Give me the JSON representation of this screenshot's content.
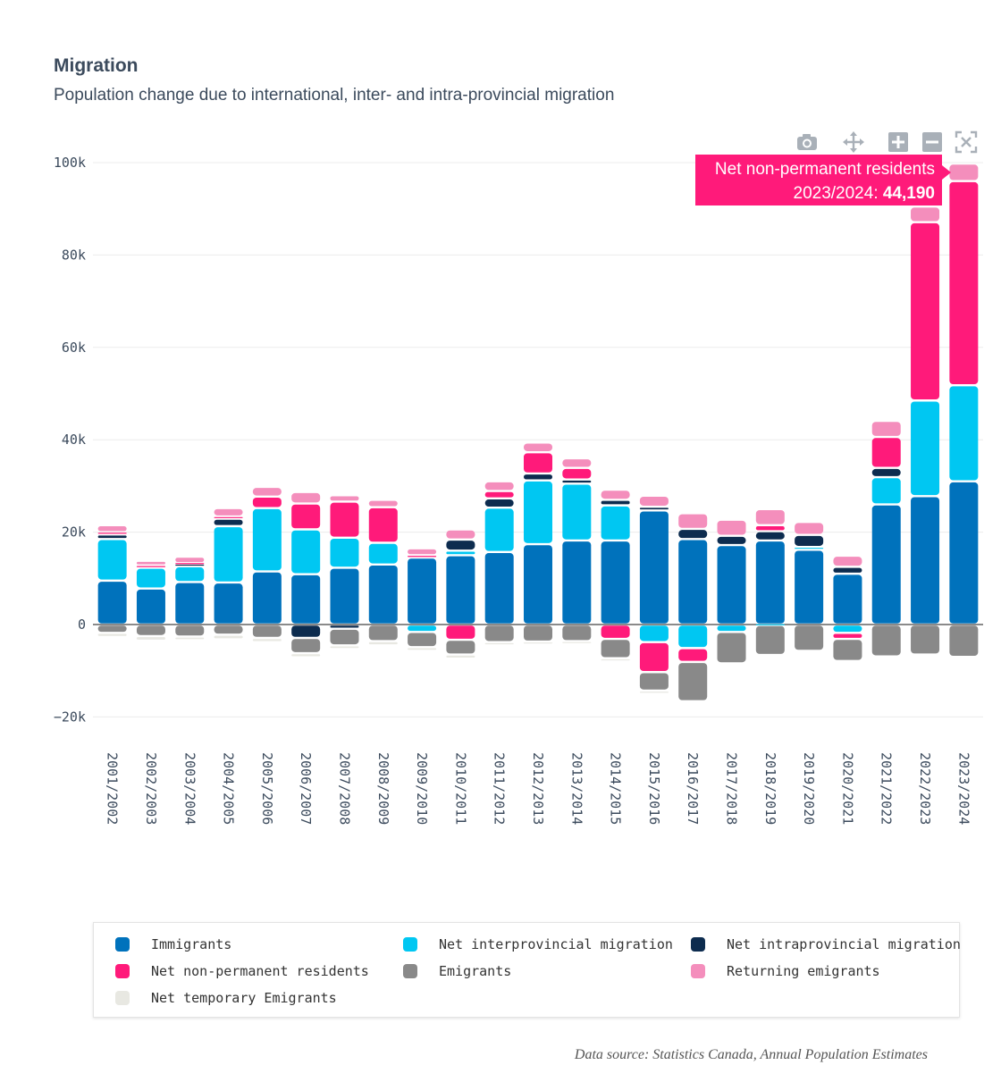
{
  "header": {
    "title": "Migration",
    "subtitle": "Population change due to international, inter- and intra-provincial migration"
  },
  "tooltip": {
    "series": "Net non-permanent residents",
    "period_prefix": "2023/2024: ",
    "value": "44,190"
  },
  "modebar": {
    "icons": [
      "camera-icon",
      "pan-icon",
      "zoom-in-icon",
      "zoom-out-icon",
      "autoscale-icon"
    ]
  },
  "source": "Data source: Statistics Canada, Annual Population Estimates",
  "chart_data": {
    "type": "bar",
    "stacking": "relative",
    "title": "Migration",
    "subtitle": "Population change due to international, inter- and intra-provincial migration",
    "ylim": [
      -22000,
      103000
    ],
    "yticks": [
      100000,
      80000,
      60000,
      40000,
      20000,
      0,
      -20000
    ],
    "ytick_labels": [
      "100k",
      "80k",
      "60k",
      "40k",
      "20k",
      "0",
      "−20k"
    ],
    "grid": true,
    "legend_position": "bottom",
    "categories": [
      "2001/2002",
      "2002/2003",
      "2003/2004",
      "2004/2005",
      "2005/2006",
      "2006/2007",
      "2007/2008",
      "2008/2009",
      "2009/2010",
      "2010/2011",
      "2011/2012",
      "2012/2013",
      "2013/2014",
      "2014/2015",
      "2015/2016",
      "2016/2017",
      "2017/2018",
      "2018/2019",
      "2019/2020",
      "2020/2021",
      "2021/2022",
      "2022/2023",
      "2023/2024"
    ],
    "series": [
      {
        "name": "Immigrants",
        "color": "#0072bc",
        "values": [
          9500,
          7800,
          9200,
          9100,
          11500,
          10900,
          12300,
          13000,
          14500,
          15000,
          15700,
          17400,
          18200,
          18200,
          24700,
          18500,
          17200,
          18200,
          16200,
          11000,
          26000,
          27800,
          31000
        ]
      },
      {
        "name": "Net interprovincial migration",
        "color": "#00c7f2",
        "values": [
          9000,
          4500,
          3400,
          12200,
          13700,
          9700,
          6500,
          4700,
          -1600,
          1000,
          9600,
          13800,
          12300,
          7600,
          -3800,
          -5100,
          -1600,
          -100,
          600,
          -1800,
          5900,
          20700,
          20800
        ]
      },
      {
        "name": "Net intraprovincial migration",
        "color": "#0d2c4f",
        "values": [
          1000,
          0,
          500,
          1600,
          0,
          -2900,
          -900,
          0,
          0,
          2400,
          2000,
          1500,
          900,
          1200,
          800,
          2200,
          2000,
          2000,
          2600,
          1500,
          2000,
          0,
          0
        ]
      },
      {
        "name": "Net non-permanent residents",
        "color": "#ff1a7a",
        "values": [
          500,
          500,
          200,
          500,
          2500,
          5600,
          7800,
          7700,
          500,
          -3300,
          1600,
          4600,
          2500,
          -3100,
          -6500,
          -3000,
          0,
          1300,
          0,
          -1300,
          6700,
          38600,
          44190
        ]
      },
      {
        "name": "Emigrants",
        "color": "#898989",
        "values": [
          -1800,
          -2500,
          -2600,
          -2200,
          -2900,
          -3300,
          -3600,
          -3600,
          -3300,
          -3200,
          -3800,
          -3700,
          -3600,
          -4200,
          -4000,
          -8500,
          -6800,
          -6500,
          -5700,
          -4800,
          -6900,
          -6500,
          -7000
        ]
      },
      {
        "name": "Returning emigrants",
        "color": "#f48ebc",
        "values": [
          1500,
          1000,
          1400,
          1800,
          2100,
          2500,
          1400,
          1600,
          1500,
          2200,
          2100,
          2100,
          2100,
          2200,
          2400,
          3400,
          3500,
          3500,
          2800,
          2400,
          3500,
          3400,
          3800
        ]
      },
      {
        "name": "Net temporary Emigrants",
        "color": "#e8e8e2",
        "values": [
          -900,
          -1000,
          -800,
          -1000,
          -900,
          -900,
          -800,
          -900,
          -800,
          -900,
          -700,
          -600,
          -600,
          -700,
          -700,
          0,
          0,
          0,
          0,
          0,
          0,
          0,
          0
        ]
      }
    ]
  },
  "legend": {
    "items": [
      {
        "label": "Immigrants",
        "color": "#0072bc"
      },
      {
        "label": "Net interprovincial migration",
        "color": "#00c7f2"
      },
      {
        "label": "Net intraprovincial migration",
        "color": "#0d2c4f"
      },
      {
        "label": "Net non-permanent residents",
        "color": "#ff1a7a"
      },
      {
        "label": "Emigrants",
        "color": "#898989"
      },
      {
        "label": "Returning emigrants",
        "color": "#f48ebc"
      },
      {
        "label": "Net temporary Emigrants",
        "color": "#e8e8e2"
      }
    ]
  }
}
